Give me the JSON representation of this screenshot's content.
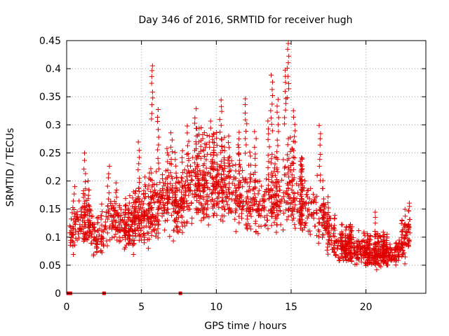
{
  "chart_data": {
    "type": "scatter",
    "title": "Day 346 of 2016, SRMTID for receiver hugh",
    "xlabel": "GPS time / hours",
    "ylabel": "SRMTID / TECUs",
    "xlim": [
      0,
      24
    ],
    "ylim": [
      0,
      0.45
    ],
    "x_ticks": [
      0,
      5,
      10,
      15,
      20
    ],
    "y_ticks": [
      0,
      0.05,
      0.1,
      0.15,
      0.2,
      0.25,
      0.3,
      0.35,
      0.4,
      0.45
    ],
    "x_tick_labels": [
      "0",
      "5",
      "10",
      "15",
      "20"
    ],
    "y_tick_labels": [
      "0",
      "0.05",
      "0.1",
      "0.15",
      "0.2",
      "0.25",
      "0.3",
      "0.35",
      "0.4",
      "0.45"
    ],
    "grid": true,
    "marker": "+",
    "color": "#e00000",
    "data_span_hours": [
      0.2,
      22.9
    ],
    "trend": [
      [
        0.3,
        0.11
      ],
      [
        1.0,
        0.12
      ],
      [
        1.5,
        0.13
      ],
      [
        2.0,
        0.09
      ],
      [
        2.5,
        0.11
      ],
      [
        3.0,
        0.14
      ],
      [
        3.5,
        0.12
      ],
      [
        4.0,
        0.11
      ],
      [
        4.5,
        0.12
      ],
      [
        5.0,
        0.13
      ],
      [
        5.5,
        0.14
      ],
      [
        6.0,
        0.16
      ],
      [
        6.5,
        0.17
      ],
      [
        7.0,
        0.17
      ],
      [
        7.5,
        0.16
      ],
      [
        8.0,
        0.18
      ],
      [
        8.5,
        0.2
      ],
      [
        9.0,
        0.19
      ],
      [
        9.5,
        0.18
      ],
      [
        10.0,
        0.19
      ],
      [
        10.5,
        0.18
      ],
      [
        11.0,
        0.19
      ],
      [
        11.5,
        0.17
      ],
      [
        12.0,
        0.16
      ],
      [
        12.5,
        0.17
      ],
      [
        13.0,
        0.15
      ],
      [
        13.5,
        0.17
      ],
      [
        14.0,
        0.16
      ],
      [
        14.5,
        0.18
      ],
      [
        15.0,
        0.18
      ],
      [
        15.5,
        0.16
      ],
      [
        16.0,
        0.15
      ],
      [
        16.5,
        0.15
      ],
      [
        17.0,
        0.14
      ],
      [
        17.5,
        0.11
      ],
      [
        18.0,
        0.09
      ],
      [
        18.5,
        0.08
      ],
      [
        19.0,
        0.08
      ],
      [
        19.5,
        0.08
      ],
      [
        20.0,
        0.07
      ],
      [
        20.5,
        0.07
      ],
      [
        21.0,
        0.07
      ],
      [
        21.5,
        0.07
      ],
      [
        22.0,
        0.07
      ],
      [
        22.5,
        0.09
      ],
      [
        22.9,
        0.11
      ]
    ],
    "peaks": [
      [
        0.5,
        0.19
      ],
      [
        1.2,
        0.25
      ],
      [
        2.8,
        0.23
      ],
      [
        4.8,
        0.27
      ],
      [
        5.7,
        0.41
      ],
      [
        6.1,
        0.33
      ],
      [
        7.0,
        0.29
      ],
      [
        8.1,
        0.3
      ],
      [
        8.6,
        0.33
      ],
      [
        9.6,
        0.31
      ],
      [
        10.3,
        0.35
      ],
      [
        11.5,
        0.29
      ],
      [
        12.0,
        0.35
      ],
      [
        12.6,
        0.29
      ],
      [
        13.5,
        0.31
      ],
      [
        13.7,
        0.39
      ],
      [
        14.1,
        0.35
      ],
      [
        14.6,
        0.4
      ],
      [
        14.8,
        0.45
      ],
      [
        15.2,
        0.33
      ],
      [
        16.9,
        0.3
      ],
      [
        20.6,
        0.15
      ],
      [
        22.6,
        0.15
      ]
    ],
    "zero_markers": [
      0.1,
      0.2,
      0.25,
      2.5,
      7.6
    ]
  }
}
